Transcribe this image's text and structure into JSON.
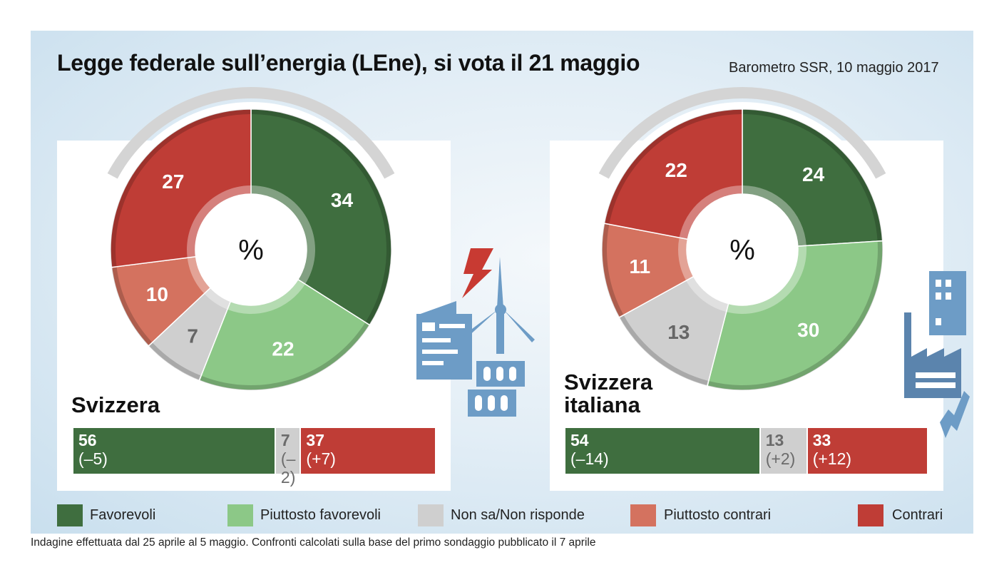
{
  "title": "Legge federale sull’energia (LEne), si vota il 21 maggio",
  "subtitle": "Barometro SSR, 10 maggio 2017",
  "footnote": "Indagine effettuata dal 25 aprile al 5 maggio. Confronti calcolati sulla base del primo sondaggio pubblicato il 7 aprile",
  "colors": {
    "favorevoli": "#3f6e3f",
    "piuttosto_favorevoli": "#8cc887",
    "non_sa": "#cfcfcf",
    "piuttosto_contrari": "#d4725f",
    "contrari": "#bf3d36"
  },
  "icons": [
    "lightning-icon",
    "wind-turbine-icon",
    "solar-panel-icon",
    "factory-icon",
    "office-building-icon"
  ],
  "legend": [
    {
      "label": "Favorevoli",
      "color": "#3f6e3f"
    },
    {
      "label": "Piuttosto favorevoli",
      "color": "#8cc887"
    },
    {
      "label": "Non sa/Non risponde",
      "color": "#cfcfcf"
    },
    {
      "label": "Piuttosto contrari",
      "color": "#d4725f"
    },
    {
      "label": "Contrari",
      "color": "#bf3d36"
    }
  ],
  "chart_data": [
    {
      "type": "pie",
      "region": "Svizzera",
      "center_label": "%",
      "categories": [
        "Favorevoli",
        "Piuttosto favorevoli",
        "Non sa/Non risponde",
        "Piuttosto contrari",
        "Contrari"
      ],
      "values": [
        34,
        22,
        7,
        10,
        27
      ],
      "summary": [
        {
          "value": "56",
          "change": "(–5)",
          "share": 56
        },
        {
          "value": "7",
          "change": "(–2)",
          "share": 7
        },
        {
          "value": "37",
          "change": "(+7)",
          "share": 37
        }
      ]
    },
    {
      "type": "pie",
      "region": "Svizzera italiana",
      "center_label": "%",
      "categories": [
        "Favorevoli",
        "Piuttosto favorevoli",
        "Non sa/Non risponde",
        "Piuttosto contrari",
        "Contrari"
      ],
      "values": [
        24,
        30,
        13,
        11,
        22
      ],
      "summary": [
        {
          "value": "54",
          "change": "(–14)",
          "share": 54
        },
        {
          "value": "13",
          "change": "(+2)",
          "share": 13
        },
        {
          "value": "33",
          "change": "(+12)",
          "share": 33
        }
      ]
    }
  ]
}
